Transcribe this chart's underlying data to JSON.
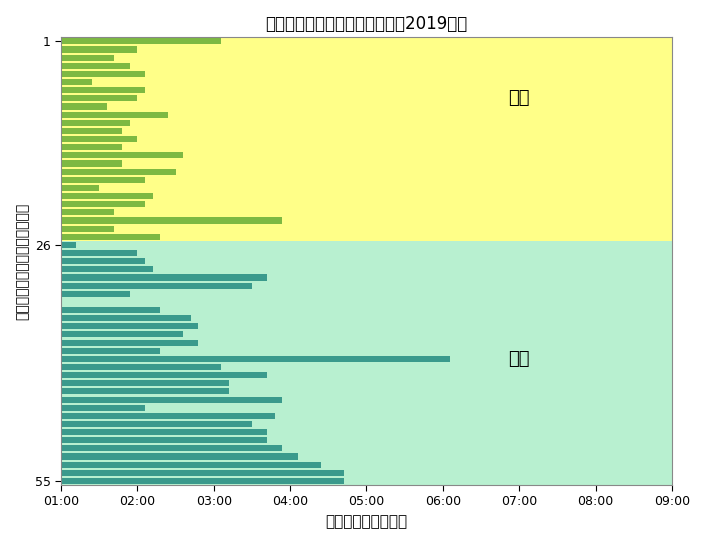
{
  "title": "歌唱順とパフォーマンス時間（2019年）",
  "xlabel": "パフォーマンス時間",
  "ylabel": "登場順（上がトップバッター）",
  "first_half_bg": "#ffff88",
  "second_half_bg": "#b8f0d0",
  "first_half_bar_color": "#7db942",
  "second_half_bar_color": "#3a9a8c",
  "first_half_label": "前半",
  "second_half_label": "後半",
  "n_first": 25,
  "n_second": 30,
  "perf_first": [
    3.1,
    2.0,
    1.7,
    1.9,
    2.1,
    1.4,
    2.1,
    2.0,
    1.6,
    2.4,
    1.9,
    1.8,
    2.0,
    1.8,
    2.6,
    1.8,
    2.5,
    2.1,
    1.5,
    2.2,
    2.1,
    1.7,
    3.9,
    1.7,
    2.3
  ],
  "perf_second": [
    1.2,
    2.0,
    2.1,
    2.2,
    3.7,
    3.5,
    1.9,
    1.0,
    2.3,
    2.7,
    2.8,
    2.6,
    2.8,
    2.3,
    6.1,
    3.1,
    3.7,
    3.2,
    3.2,
    3.9,
    2.1,
    3.8,
    3.5,
    3.7,
    3.7,
    3.9,
    4.1,
    4.4,
    4.7,
    4.7
  ]
}
